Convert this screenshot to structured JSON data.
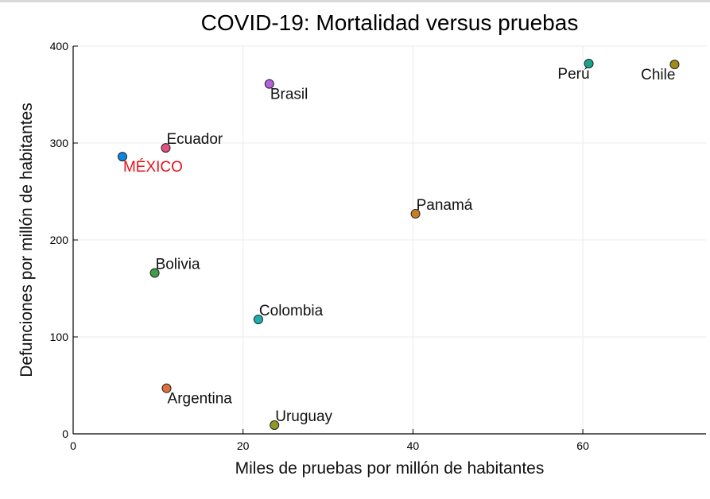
{
  "chart_data": {
    "type": "scatter",
    "title": "COVID-19: Mortalidad versus pruebas",
    "xlabel": "Miles de pruebas por millón de habitantes",
    "ylabel": "Defunciones por millón de habitantes",
    "xlim": [
      0,
      74.5
    ],
    "ylim": [
      0,
      400
    ],
    "xticks": [
      0,
      20,
      40,
      60
    ],
    "yticks": [
      0,
      100,
      200,
      300,
      400
    ],
    "grid": true,
    "legend": "none",
    "points": [
      {
        "label": "MÉXICO",
        "x": 5.8,
        "y": 286,
        "color": "#0b86e0",
        "label_color": "#e8111a",
        "label_pos": "below-right"
      },
      {
        "label": "Ecuador",
        "x": 10.9,
        "y": 295,
        "color": "#e2517f",
        "label_color": "#111111",
        "label_pos": "above-right"
      },
      {
        "label": "Brasil",
        "x": 23.1,
        "y": 361,
        "color": "#b562dd",
        "label_color": "#111111",
        "label_pos": "below-right"
      },
      {
        "label": "Perú",
        "x": 60.7,
        "y": 382,
        "color": "#16a58a",
        "label_color": "#111111",
        "label_pos": "below-left"
      },
      {
        "label": "Chile",
        "x": 70.8,
        "y": 381,
        "color": "#a08a18",
        "label_color": "#111111",
        "label_pos": "below-left"
      },
      {
        "label": "Panamá",
        "x": 40.3,
        "y": 227,
        "color": "#c97f1f",
        "label_color": "#111111",
        "label_pos": "above-right"
      },
      {
        "label": "Bolivia",
        "x": 9.6,
        "y": 166,
        "color": "#3f9c4b",
        "label_color": "#111111",
        "label_pos": "above-right"
      },
      {
        "label": "Colombia",
        "x": 21.8,
        "y": 118,
        "color": "#1aaeb3",
        "label_color": "#111111",
        "label_pos": "above-right"
      },
      {
        "label": "Argentina",
        "x": 11.0,
        "y": 47,
        "color": "#e0703a",
        "label_color": "#111111",
        "label_pos": "below-right"
      },
      {
        "label": "Uruguay",
        "x": 23.7,
        "y": 9,
        "color": "#8f9a23",
        "label_color": "#111111",
        "label_pos": "above-right"
      }
    ]
  }
}
